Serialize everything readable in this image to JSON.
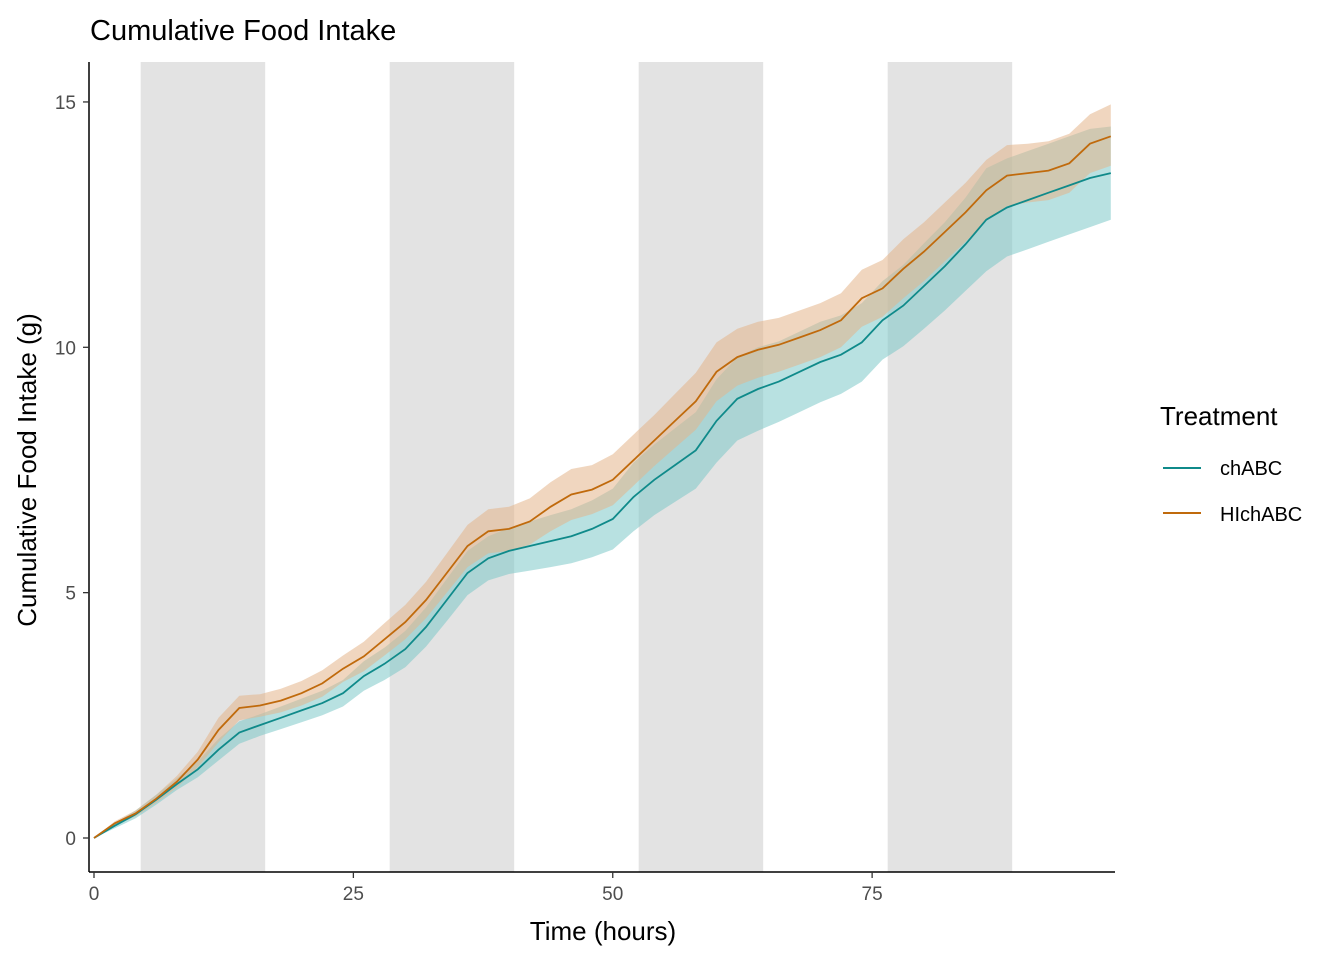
{
  "chart_data": {
    "type": "line",
    "title": "Cumulative Food Intake",
    "xlabel": "Time (hours)",
    "ylabel": "Cumulative Food Intake (g)",
    "xlim": [
      0,
      98
    ],
    "ylim": [
      0,
      15.5
    ],
    "x_ticks": [
      0,
      25,
      50,
      75
    ],
    "x_tick_labels": [
      "0",
      "25",
      "50",
      "75"
    ],
    "y_ticks": [
      0,
      5,
      10,
      15
    ],
    "y_tick_labels": [
      "0",
      "5",
      "10",
      "15"
    ],
    "grid": false,
    "legend_title": "Treatment",
    "legend_position": "right",
    "dark_periods": [
      [
        4.5,
        16.5
      ],
      [
        28.5,
        40.5
      ],
      [
        52.5,
        64.5
      ],
      [
        76.5,
        88.5
      ]
    ],
    "shade_color": "#e3e3e3",
    "series": [
      {
        "name": "chABC",
        "color": "#0f8a8a",
        "ribbon_color": "#7ec9c9",
        "x": [
          0,
          2,
          4,
          6,
          8,
          10,
          12,
          14,
          16,
          18,
          20,
          22,
          24,
          26,
          28,
          30,
          32,
          34,
          36,
          38,
          40,
          42,
          44,
          46,
          48,
          50,
          52,
          54,
          56,
          58,
          60,
          62,
          64,
          66,
          68,
          70,
          72,
          74,
          76,
          78,
          80,
          82,
          84,
          86,
          88,
          90,
          92,
          94,
          96,
          98
        ],
        "y": [
          0,
          0.25,
          0.48,
          0.78,
          1.1,
          1.4,
          1.8,
          2.15,
          2.3,
          2.45,
          2.6,
          2.75,
          2.95,
          3.3,
          3.55,
          3.85,
          4.3,
          4.85,
          5.4,
          5.7,
          5.85,
          5.95,
          6.05,
          6.15,
          6.3,
          6.5,
          6.95,
          7.3,
          7.6,
          7.9,
          8.5,
          8.95,
          9.15,
          9.3,
          9.5,
          9.7,
          9.85,
          10.1,
          10.55,
          10.85,
          11.25,
          11.65,
          12.1,
          12.6,
          12.85,
          13.0,
          13.15,
          13.3,
          13.45,
          13.55
        ],
        "lower": [
          0,
          0.2,
          0.4,
          0.68,
          0.98,
          1.24,
          1.58,
          1.92,
          2.08,
          2.22,
          2.36,
          2.5,
          2.68,
          3.0,
          3.22,
          3.48,
          3.9,
          4.42,
          4.95,
          5.25,
          5.38,
          5.45,
          5.52,
          5.6,
          5.72,
          5.88,
          6.25,
          6.58,
          6.85,
          7.12,
          7.65,
          8.1,
          8.3,
          8.48,
          8.68,
          8.88,
          9.05,
          9.3,
          9.75,
          10.02,
          10.38,
          10.75,
          11.15,
          11.55,
          11.85,
          12.0,
          12.15,
          12.3,
          12.45,
          12.6
        ],
        "upper": [
          0,
          0.3,
          0.56,
          0.88,
          1.22,
          1.56,
          2.02,
          2.38,
          2.52,
          2.68,
          2.84,
          3.0,
          3.22,
          3.6,
          3.88,
          4.22,
          4.7,
          5.28,
          5.85,
          6.15,
          6.32,
          6.45,
          6.58,
          6.7,
          6.88,
          7.12,
          7.65,
          8.02,
          8.35,
          8.68,
          9.35,
          9.8,
          10.0,
          10.12,
          10.32,
          10.52,
          10.65,
          10.9,
          11.35,
          11.68,
          12.12,
          12.55,
          13.05,
          13.65,
          13.85,
          14.0,
          14.15,
          14.3,
          14.45,
          14.5
        ]
      },
      {
        "name": "HIchABC",
        "color": "#c06a0c",
        "ribbon_color": "#e3b58a",
        "x": [
          0,
          2,
          4,
          6,
          8,
          10,
          12,
          14,
          16,
          18,
          20,
          22,
          24,
          26,
          28,
          30,
          32,
          34,
          36,
          38,
          40,
          42,
          44,
          46,
          48,
          50,
          52,
          54,
          56,
          58,
          60,
          62,
          64,
          66,
          68,
          70,
          72,
          74,
          76,
          78,
          80,
          82,
          84,
          86,
          88,
          90,
          92,
          94,
          96,
          98
        ],
        "y": [
          0,
          0.3,
          0.5,
          0.8,
          1.15,
          1.6,
          2.2,
          2.65,
          2.7,
          2.8,
          2.95,
          3.15,
          3.45,
          3.7,
          4.05,
          4.4,
          4.85,
          5.4,
          5.95,
          6.25,
          6.3,
          6.45,
          6.75,
          7.0,
          7.1,
          7.3,
          7.7,
          8.1,
          8.5,
          8.9,
          9.5,
          9.8,
          9.95,
          10.05,
          10.2,
          10.35,
          10.55,
          11.0,
          11.2,
          11.6,
          11.95,
          12.35,
          12.75,
          13.2,
          13.5,
          13.55,
          13.6,
          13.75,
          14.15,
          14.3
        ],
        "lower": [
          0,
          0.26,
          0.44,
          0.72,
          1.03,
          1.44,
          1.95,
          2.4,
          2.47,
          2.56,
          2.7,
          2.88,
          3.18,
          3.4,
          3.72,
          4.05,
          4.48,
          5.0,
          5.52,
          5.8,
          5.85,
          5.98,
          6.25,
          6.48,
          6.6,
          6.78,
          7.18,
          7.58,
          7.95,
          8.32,
          8.9,
          9.22,
          9.38,
          9.5,
          9.65,
          9.8,
          10.0,
          10.42,
          10.62,
          11.0,
          11.35,
          11.75,
          12.15,
          12.58,
          12.88,
          12.95,
          13.0,
          13.15,
          13.55,
          13.7
        ],
        "upper": [
          0,
          0.34,
          0.56,
          0.88,
          1.27,
          1.76,
          2.45,
          2.9,
          2.93,
          3.04,
          3.2,
          3.42,
          3.72,
          4.0,
          4.38,
          4.75,
          5.22,
          5.8,
          6.38,
          6.7,
          6.75,
          6.92,
          7.25,
          7.52,
          7.6,
          7.82,
          8.22,
          8.62,
          9.05,
          9.48,
          10.1,
          10.38,
          10.52,
          10.6,
          10.75,
          10.9,
          11.1,
          11.58,
          11.78,
          12.2,
          12.55,
          12.95,
          13.35,
          13.82,
          14.12,
          14.15,
          14.2,
          14.35,
          14.75,
          14.95
        ]
      }
    ]
  }
}
